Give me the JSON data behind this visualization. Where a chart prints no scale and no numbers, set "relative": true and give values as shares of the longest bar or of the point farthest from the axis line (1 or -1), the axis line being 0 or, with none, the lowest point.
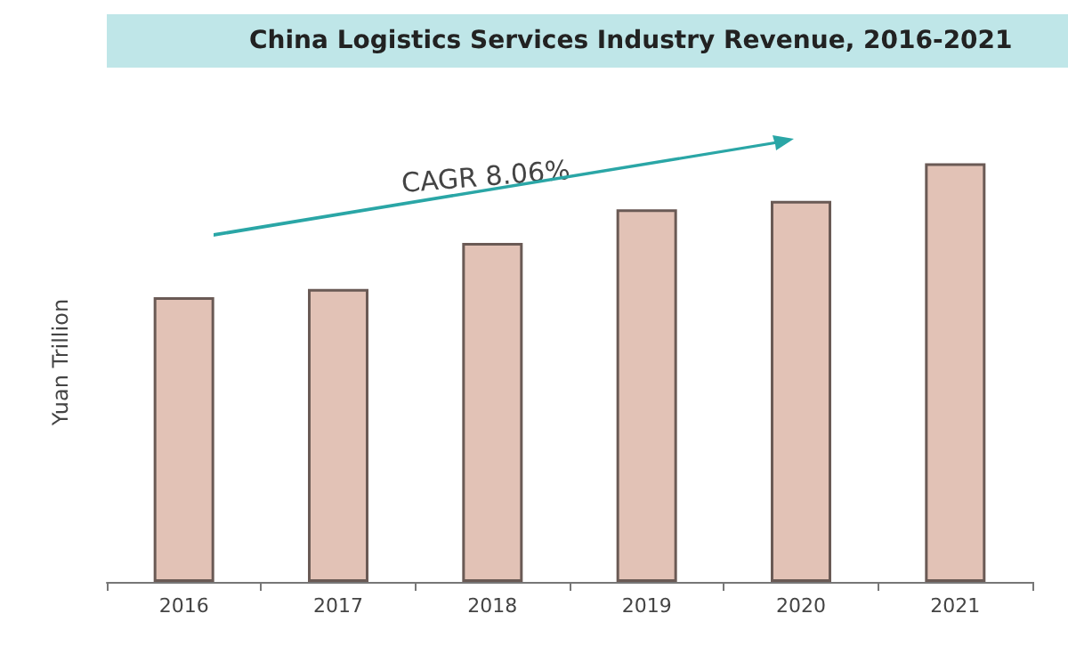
{
  "chart_data": {
    "type": "bar",
    "title": "China Logistics Services Industry Revenue, 2016-2021",
    "ylabel": "Yuan Trillion",
    "categories": [
      "2016",
      "2017",
      "2018",
      "2019",
      "2020",
      "2021"
    ],
    "values": [
      0.68,
      0.7,
      0.81,
      0.89,
      0.91,
      1
    ],
    "color": "#e2c2b6",
    "relative": true,
    "annotations": [
      "CAGR 8.06%"
    ]
  }
}
